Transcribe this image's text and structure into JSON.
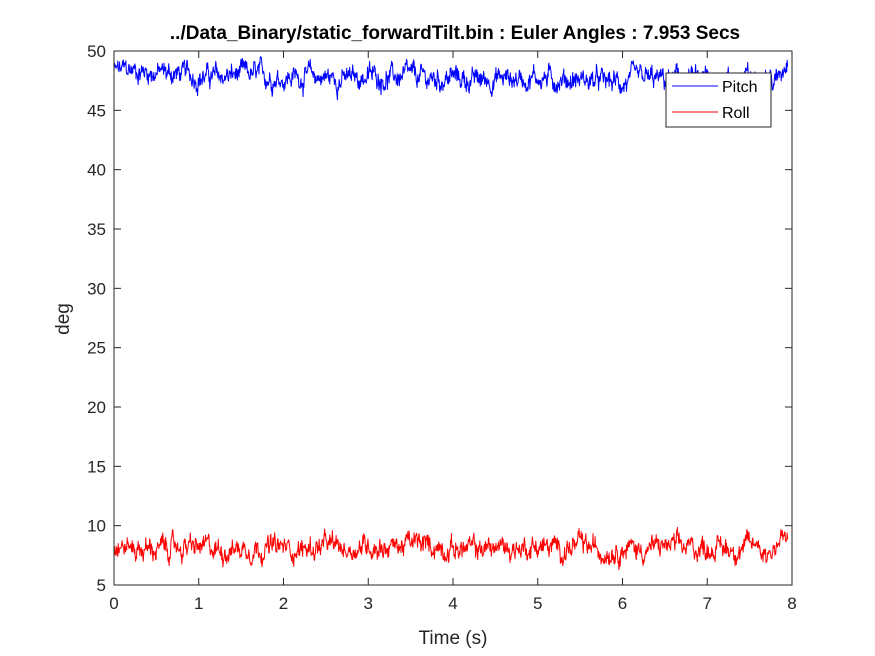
{
  "chart_data": {
    "type": "line",
    "title": "../Data_Binary/static_forwardTilt.bin : Euler Angles : 7.953 Secs",
    "xlabel": "Time (s)",
    "ylabel": "deg",
    "xlim": [
      0,
      8
    ],
    "ylim": [
      5,
      50
    ],
    "x_ticks": [
      "0",
      "1",
      "2",
      "3",
      "4",
      "5",
      "6",
      "7",
      "8"
    ],
    "y_ticks": [
      "5",
      "10",
      "15",
      "20",
      "25",
      "30",
      "35",
      "40",
      "45",
      "50"
    ],
    "x_end": 7.953,
    "grid": false,
    "legend": {
      "placement": "top-right",
      "entries": [
        "Pitch",
        "Roll"
      ]
    },
    "series": [
      {
        "name": "Pitch",
        "color": "#0000ff",
        "x": [
          0.0,
          0.25,
          0.5,
          0.75,
          1.0,
          1.25,
          1.5,
          1.75,
          2.0,
          2.25,
          2.5,
          2.75,
          3.0,
          3.25,
          3.5,
          3.75,
          4.0,
          4.25,
          4.5,
          4.75,
          5.0,
          5.25,
          5.5,
          5.75,
          6.0,
          6.25,
          6.5,
          6.75,
          7.0,
          7.25,
          7.5,
          7.6,
          7.7,
          7.8,
          7.9,
          7.953
        ],
        "values": [
          48.3,
          48.4,
          48.2,
          48.1,
          47.9,
          47.8,
          48.0,
          47.9,
          47.8,
          47.9,
          47.8,
          47.6,
          47.9,
          47.8,
          47.8,
          47.6,
          47.8,
          47.5,
          47.7,
          47.7,
          47.8,
          47.6,
          47.6,
          47.4,
          47.3,
          47.6,
          47.5,
          47.6,
          47.6,
          47.8,
          47.6,
          47.8,
          48.2,
          47.2,
          48.8,
          49.6
        ]
      },
      {
        "name": "Roll",
        "color": "#ff0000",
        "x": [
          0.0,
          0.25,
          0.5,
          0.75,
          1.0,
          1.25,
          1.5,
          1.75,
          2.0,
          2.25,
          2.5,
          2.75,
          3.0,
          3.25,
          3.5,
          3.75,
          4.0,
          4.25,
          4.5,
          4.75,
          5.0,
          5.25,
          5.5,
          5.75,
          6.0,
          6.25,
          6.5,
          6.75,
          7.0,
          7.25,
          7.5,
          7.6,
          7.7,
          7.8,
          7.9,
          7.953
        ],
        "values": [
          8.5,
          8.1,
          8.0,
          8.2,
          8.1,
          8.0,
          8.1,
          8.2,
          8.1,
          8.0,
          8.3,
          8.0,
          8.4,
          8.2,
          8.5,
          8.3,
          8.1,
          8.0,
          8.2,
          8.1,
          8.3,
          8.0,
          8.3,
          7.9,
          8.2,
          8.0,
          8.3,
          8.1,
          8.2,
          8.1,
          8.2,
          8.6,
          7.6,
          8.3,
          9.2,
          8.0
        ]
      }
    ]
  }
}
